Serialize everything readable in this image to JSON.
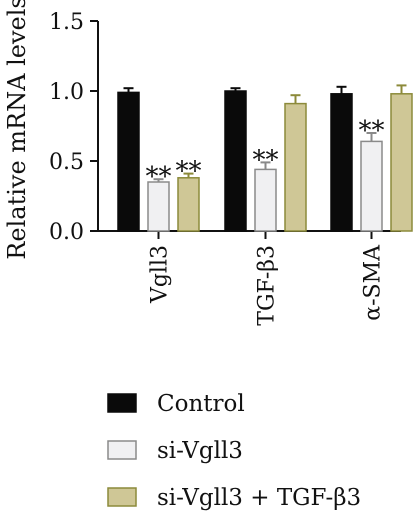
{
  "chart_data": {
    "type": "bar",
    "ylabel": "Relative mRNA levels",
    "ylim": [
      0,
      1.5
    ],
    "yticks": [
      "0.0",
      "0.5",
      "1.0",
      "1.5"
    ],
    "ytick_values": [
      0,
      0.5,
      1.0,
      1.5
    ],
    "categories": [
      "Vgll3",
      "TGF-β3",
      "α-SMA"
    ],
    "series": [
      {
        "name": "Control",
        "color": "#0a0a0a",
        "stroke": "#0a0a0a",
        "values": [
          0.99,
          1.0,
          0.98
        ],
        "errors": [
          0.03,
          0.02,
          0.05
        ]
      },
      {
        "name": "si-Vgll3",
        "color": "#f0f0f2",
        "stroke": "#8a8a8a",
        "values": [
          0.35,
          0.44,
          0.64
        ],
        "errors": [
          0.02,
          0.05,
          0.06
        ]
      },
      {
        "name": "si-Vgll3 + TGF-β3",
        "color": "#cfc796",
        "stroke": "#8c8a3a",
        "values": [
          0.38,
          0.91,
          0.98
        ],
        "errors": [
          0.03,
          0.06,
          0.06
        ]
      }
    ],
    "annotations": [
      {
        "category": 0,
        "series": 1,
        "text": "**"
      },
      {
        "category": 0,
        "series": 2,
        "text": "**"
      },
      {
        "category": 1,
        "series": 1,
        "text": "**"
      },
      {
        "category": 2,
        "series": 1,
        "text": "**"
      }
    ],
    "legend_position": "bottom",
    "grid": false
  }
}
